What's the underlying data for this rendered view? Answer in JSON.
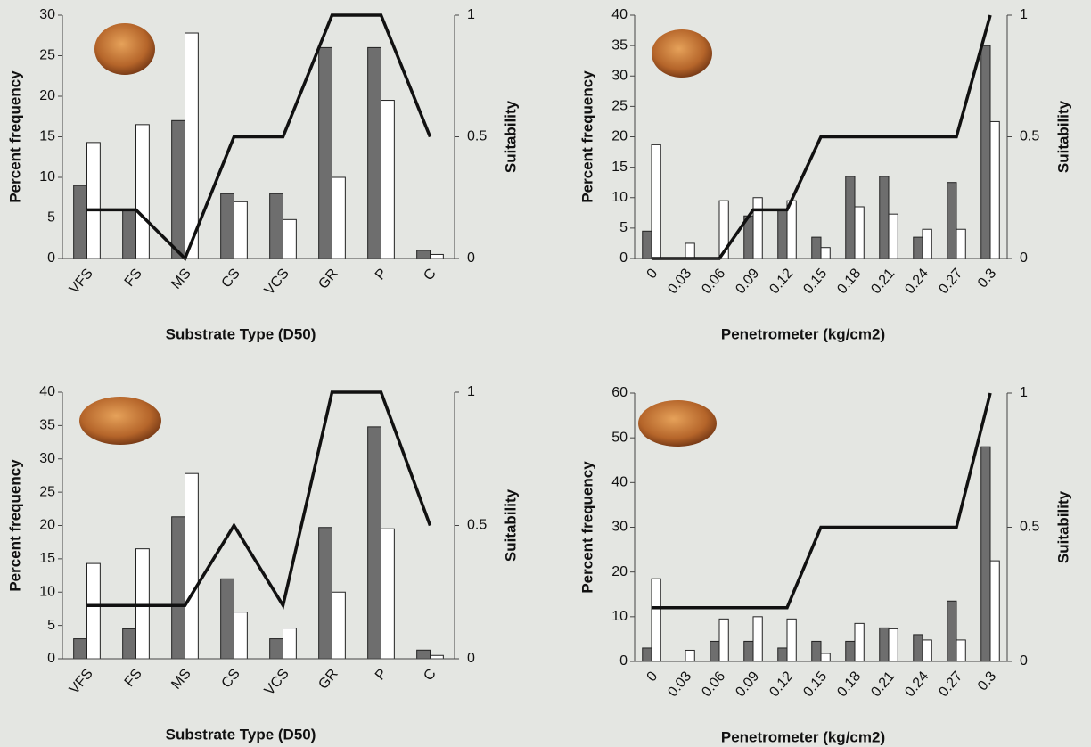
{
  "chart_data": [
    {
      "type": "combo",
      "xlabel": "Substrate Type (D50)",
      "ylabel": "Percent frequency",
      "y2label": "Suitability",
      "categories": [
        "VFS",
        "FS",
        "MS",
        "CS",
        "VCS",
        "GR",
        "P",
        "C"
      ],
      "ylim": [
        0,
        30
      ],
      "yticks": [
        0,
        5,
        10,
        15,
        20,
        25,
        30
      ],
      "y2lim": [
        0,
        1
      ],
      "y2ticks": [
        0,
        0.5,
        1
      ],
      "series": [
        {
          "type": "bar",
          "color": "#6e6e6e",
          "values": [
            9,
            6,
            17,
            8,
            8,
            26,
            26,
            1
          ]
        },
        {
          "type": "bar",
          "color": "#ffffff",
          "values": [
            14.3,
            16.5,
            27.8,
            7,
            4.8,
            10,
            19.5,
            0.5
          ]
        },
        {
          "type": "line",
          "axis": "y2",
          "color": "#111111",
          "values": [
            0.2,
            0.2,
            0,
            0.5,
            0.5,
            1,
            1,
            0.5
          ]
        }
      ]
    },
    {
      "type": "combo",
      "xlabel": "Penetrometer (kg/cm2)",
      "ylabel": "Percent frequency",
      "y2label": "Suitability",
      "categories": [
        "0",
        "0.03",
        "0.06",
        "0.09",
        "0.12",
        "0.15",
        "0.18",
        "0.21",
        "0.24",
        "0.27",
        "0.3"
      ],
      "ylim": [
        0,
        40
      ],
      "yticks": [
        0,
        5,
        10,
        15,
        20,
        25,
        30,
        35,
        40
      ],
      "y2lim": [
        0,
        1
      ],
      "y2ticks": [
        0,
        0.5,
        1
      ],
      "series": [
        {
          "type": "bar",
          "color": "#6e6e6e",
          "values": [
            4.5,
            0,
            0,
            7,
            8,
            3.5,
            13.5,
            13.5,
            3.5,
            12.5,
            35
          ]
        },
        {
          "type": "bar",
          "color": "#ffffff",
          "values": [
            18.7,
            2.5,
            9.5,
            10,
            9.5,
            1.8,
            8.5,
            7.3,
            4.8,
            4.8,
            22.5
          ]
        },
        {
          "type": "line",
          "axis": "y2",
          "color": "#111111",
          "values": [
            0,
            0,
            0,
            0.2,
            0.2,
            0.5,
            0.5,
            0.5,
            0.5,
            0.5,
            1
          ]
        }
      ]
    },
    {
      "type": "combo",
      "xlabel": "Substrate Type (D50)",
      "ylabel": "Percent frequency",
      "y2label": "Suitability",
      "categories": [
        "VFS",
        "FS",
        "MS",
        "CS",
        "VCS",
        "GR",
        "P",
        "C"
      ],
      "ylim": [
        0,
        40
      ],
      "yticks": [
        0,
        5,
        10,
        15,
        20,
        25,
        30,
        35,
        40
      ],
      "y2lim": [
        0,
        1
      ],
      "y2ticks": [
        0,
        0.5,
        1
      ],
      "series": [
        {
          "type": "bar",
          "color": "#6e6e6e",
          "values": [
            3,
            4.5,
            21.3,
            12,
            3,
            19.7,
            34.8,
            1.3
          ]
        },
        {
          "type": "bar",
          "color": "#ffffff",
          "values": [
            14.3,
            16.5,
            27.8,
            7,
            4.6,
            10,
            19.5,
            0.5
          ]
        },
        {
          "type": "line",
          "axis": "y2",
          "color": "#111111",
          "values": [
            0.2,
            0.2,
            0.2,
            0.5,
            0.2,
            1,
            1,
            0.5
          ]
        }
      ]
    },
    {
      "type": "combo",
      "xlabel": "Penetrometer (kg/cm2)",
      "ylabel": "Percent frequency",
      "y2label": "Suitability",
      "categories": [
        "0",
        "0.03",
        "0.06",
        "0.09",
        "0.12",
        "0.15",
        "0.18",
        "0.21",
        "0.24",
        "0.27",
        "0.3"
      ],
      "ylim": [
        0,
        60
      ],
      "yticks": [
        0,
        10,
        20,
        30,
        40,
        50,
        60
      ],
      "y2lim": [
        0,
        1
      ],
      "y2ticks": [
        0,
        0.5,
        1
      ],
      "series": [
        {
          "type": "bar",
          "color": "#6e6e6e",
          "values": [
            3,
            0,
            4.5,
            4.5,
            3,
            4.5,
            4.5,
            7.5,
            6,
            13.5,
            48
          ]
        },
        {
          "type": "bar",
          "color": "#ffffff",
          "values": [
            18.5,
            2.5,
            9.5,
            10,
            9.5,
            1.8,
            8.5,
            7.3,
            4.8,
            4.8,
            22.5
          ]
        },
        {
          "type": "line",
          "axis": "y2",
          "color": "#111111",
          "values": [
            0.2,
            0.2,
            0.2,
            0.2,
            0.2,
            0.5,
            0.5,
            0.5,
            0.5,
            0.5,
            1
          ]
        }
      ]
    }
  ]
}
